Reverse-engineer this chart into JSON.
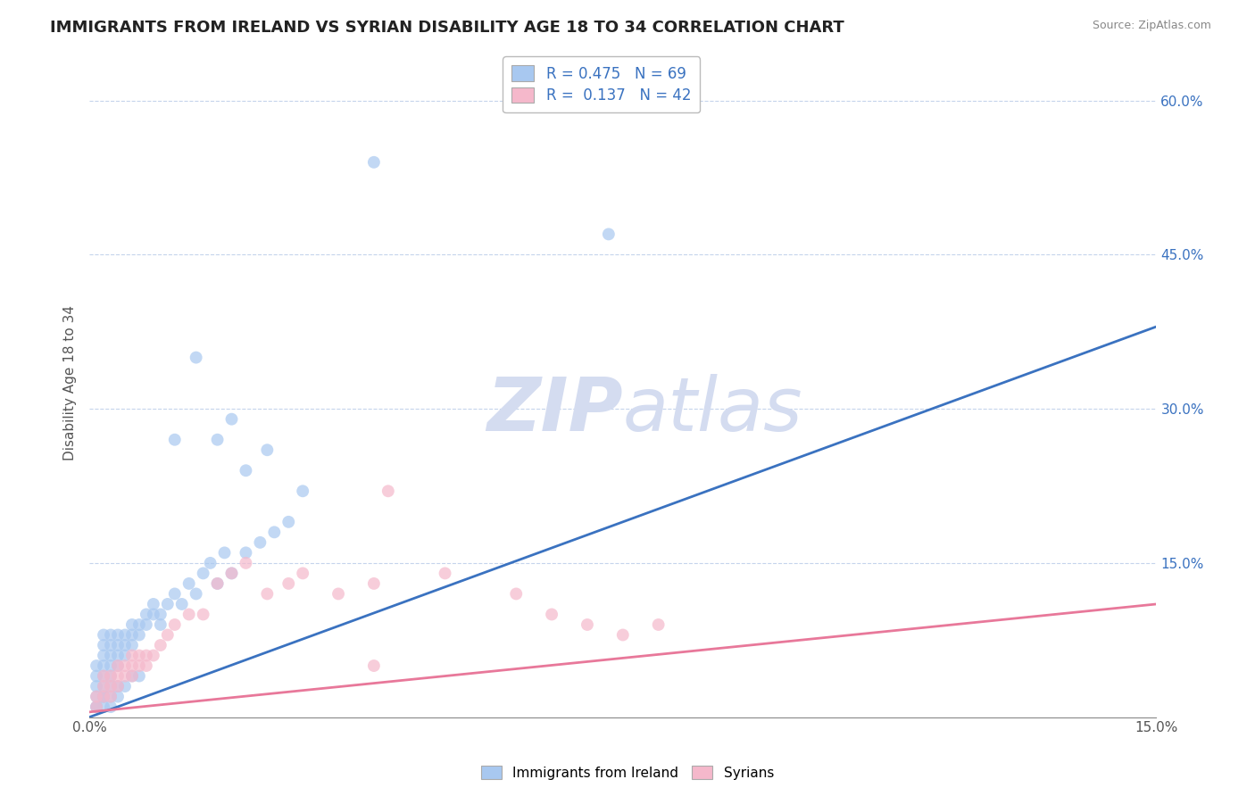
{
  "title": "IMMIGRANTS FROM IRELAND VS SYRIAN DISABILITY AGE 18 TO 34 CORRELATION CHART",
  "source": "Source: ZipAtlas.com",
  "ylabel": "Disability Age 18 to 34",
  "xlim": [
    0.0,
    0.15
  ],
  "ylim": [
    0.0,
    0.65
  ],
  "r_ireland": 0.475,
  "n_ireland": 69,
  "r_syrian": 0.137,
  "n_syrian": 42,
  "blue_color": "#A8C8F0",
  "pink_color": "#F5B8CB",
  "blue_line_color": "#3A72C0",
  "pink_line_color": "#E8789A",
  "legend_text_color": "#3A72C0",
  "title_color": "#222222",
  "watermark_color": "#D4DCF0",
  "grid_color": "#C5D4EC",
  "background_color": "#FFFFFF",
  "ytick_vals_right": [
    0.0,
    0.15,
    0.3,
    0.45,
    0.6
  ],
  "ytick_labels_right": [
    "",
    "15.0%",
    "30.0%",
    "45.0%",
    "60.0%"
  ],
  "blue_line_x": [
    0.0,
    0.15
  ],
  "blue_line_y": [
    0.0,
    0.38
  ],
  "pink_line_x": [
    0.0,
    0.15
  ],
  "pink_line_y": [
    0.005,
    0.11
  ],
  "blue_scatter_x": [
    0.001,
    0.001,
    0.001,
    0.001,
    0.001,
    0.002,
    0.002,
    0.002,
    0.002,
    0.002,
    0.002,
    0.002,
    0.003,
    0.003,
    0.003,
    0.003,
    0.003,
    0.003,
    0.004,
    0.004,
    0.004,
    0.004,
    0.005,
    0.005,
    0.005,
    0.006,
    0.006,
    0.006,
    0.007,
    0.007,
    0.008,
    0.008,
    0.009,
    0.009,
    0.01,
    0.01,
    0.011,
    0.012,
    0.013,
    0.014,
    0.015,
    0.016,
    0.017,
    0.018,
    0.019,
    0.02,
    0.022,
    0.024,
    0.026,
    0.028,
    0.001,
    0.002,
    0.002,
    0.003,
    0.003,
    0.004,
    0.004,
    0.005,
    0.006,
    0.007,
    0.04,
    0.073,
    0.015,
    0.02,
    0.025,
    0.018,
    0.022,
    0.03,
    0.012
  ],
  "blue_scatter_y": [
    0.01,
    0.02,
    0.03,
    0.04,
    0.05,
    0.02,
    0.03,
    0.04,
    0.05,
    0.06,
    0.07,
    0.08,
    0.03,
    0.04,
    0.05,
    0.06,
    0.07,
    0.08,
    0.05,
    0.06,
    0.07,
    0.08,
    0.06,
    0.07,
    0.08,
    0.07,
    0.08,
    0.09,
    0.08,
    0.09,
    0.09,
    0.1,
    0.1,
    0.11,
    0.09,
    0.1,
    0.11,
    0.12,
    0.11,
    0.13,
    0.12,
    0.14,
    0.15,
    0.13,
    0.16,
    0.14,
    0.16,
    0.17,
    0.18,
    0.19,
    0.01,
    0.01,
    0.02,
    0.02,
    0.01,
    0.03,
    0.02,
    0.03,
    0.04,
    0.04,
    0.54,
    0.47,
    0.35,
    0.29,
    0.26,
    0.27,
    0.24,
    0.22,
    0.27
  ],
  "pink_scatter_x": [
    0.001,
    0.001,
    0.002,
    0.002,
    0.002,
    0.003,
    0.003,
    0.003,
    0.004,
    0.004,
    0.004,
    0.005,
    0.005,
    0.006,
    0.006,
    0.006,
    0.007,
    0.007,
    0.008,
    0.008,
    0.009,
    0.01,
    0.011,
    0.012,
    0.014,
    0.016,
    0.018,
    0.02,
    0.022,
    0.025,
    0.028,
    0.03,
    0.035,
    0.04,
    0.042,
    0.05,
    0.06,
    0.065,
    0.07,
    0.08,
    0.04,
    0.075
  ],
  "pink_scatter_y": [
    0.01,
    0.02,
    0.02,
    0.03,
    0.04,
    0.02,
    0.03,
    0.04,
    0.03,
    0.04,
    0.05,
    0.04,
    0.05,
    0.04,
    0.05,
    0.06,
    0.05,
    0.06,
    0.05,
    0.06,
    0.06,
    0.07,
    0.08,
    0.09,
    0.1,
    0.1,
    0.13,
    0.14,
    0.15,
    0.12,
    0.13,
    0.14,
    0.12,
    0.13,
    0.22,
    0.14,
    0.12,
    0.1,
    0.09,
    0.09,
    0.05,
    0.08
  ]
}
